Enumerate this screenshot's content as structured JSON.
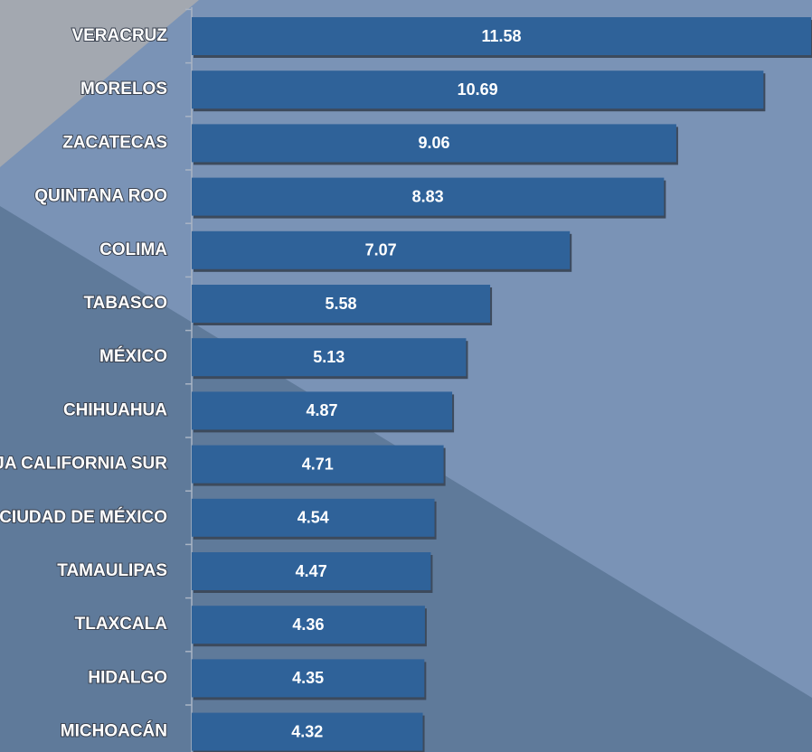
{
  "chart_data": {
    "type": "hbar",
    "categories": [
      "VERACRUZ",
      "MORELOS",
      "ZACATECAS",
      "QUINTANA ROO",
      "COLIMA",
      "TABASCO",
      "MÉXICO",
      "CHIHUAHUA",
      "BAJA CALIFORNIA SUR",
      "CIUDAD DE MÉXICO",
      "TAMAULIPAS",
      "TLAXCALA",
      "HIDALGO",
      "MICHOACÁN"
    ],
    "values": [
      11.58,
      10.69,
      9.06,
      8.83,
      7.07,
      5.58,
      5.13,
      4.87,
      4.71,
      4.54,
      4.47,
      4.36,
      4.35,
      4.32
    ],
    "color": "#2f6299"
  }
}
